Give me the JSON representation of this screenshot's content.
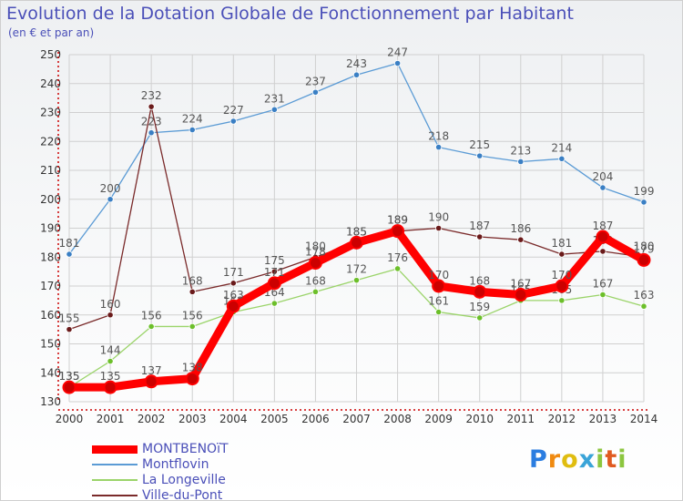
{
  "header": {
    "title": "Evolution de la Dotation Globale de Fonctionnement par Habitant",
    "subtitle": "(en € et par an)"
  },
  "logo": {
    "text": "Proxiti",
    "p": "P",
    "r": "r",
    "o": "o",
    "x": "x",
    "i1": "i",
    "t": "t",
    "i2": "i"
  },
  "colors": {
    "grid": "#d0d0d0",
    "axis": "#cc0000",
    "tick_text": "#333333",
    "label_text": "#555555"
  },
  "chart_data": {
    "type": "line",
    "title": "Evolution de la Dotation Globale de Fonctionnement par Habitant",
    "subtitle": "(en € et par an)",
    "xlabel": "",
    "ylabel": "",
    "x": [
      2000,
      2001,
      2002,
      2003,
      2004,
      2005,
      2006,
      2007,
      2008,
      2009,
      2010,
      2011,
      2012,
      2013,
      2014
    ],
    "ylim": [
      130,
      250
    ],
    "yticks": [
      130,
      140,
      150,
      160,
      170,
      180,
      190,
      200,
      210,
      220,
      230,
      240,
      250
    ],
    "grid": true,
    "legend_position": "bottom-left",
    "series": [
      {
        "name": "Montflovin",
        "color": "#5b9bd5",
        "marker": "#3a7fc4",
        "thick": false,
        "values": [
          181,
          200,
          223,
          224,
          227,
          231,
          237,
          243,
          247,
          218,
          215,
          213,
          214,
          204,
          199
        ]
      },
      {
        "name": "La Longeville",
        "color": "#9bd46a",
        "marker": "#6cbf2a",
        "thick": false,
        "values": [
          135,
          144,
          156,
          156,
          161,
          164,
          168,
          172,
          176,
          161,
          159,
          165,
          165,
          167,
          163
        ]
      },
      {
        "name": "Ville-du-Pont",
        "color": "#7a2a2a",
        "marker": "#6a1a1a",
        "thick": false,
        "values": [
          155,
          160,
          232,
          168,
          171,
          175,
          180,
          185,
          189,
          190,
          187,
          186,
          181,
          182,
          180
        ]
      },
      {
        "name": "MONTBENOïT",
        "color": "#ff0000",
        "marker": "#cc0000",
        "thick": true,
        "values": [
          135,
          135,
          137,
          138,
          163,
          171,
          178,
          185,
          189,
          170,
          168,
          167,
          170,
          187,
          179
        ]
      }
    ],
    "legend_order": [
      "MONTBENOïT",
      "Montflovin",
      "La Longeville",
      "Ville-du-Pont"
    ]
  }
}
